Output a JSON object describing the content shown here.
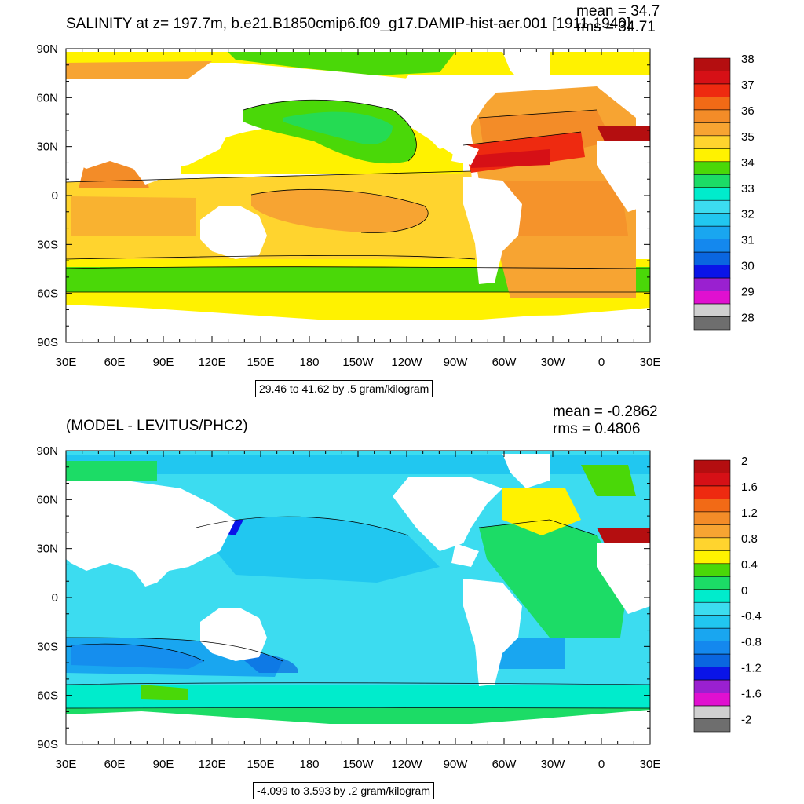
{
  "colors": {
    "fill_values": [
      "#6e6e6e",
      "#d0d0d0",
      "#e010d0",
      "#9a20d0",
      "#0a14e8",
      "#0a66e0",
      "#1488ee",
      "#19a6f0",
      "#21c7f0",
      "#3cdcf0",
      "#00eccc",
      "#1cdc66",
      "#4ad808",
      "#fff200",
      "#ffd42e",
      "#f7a432",
      "#f38c28",
      "#f26a16",
      "#ee2a10",
      "#d61016",
      "#b40e10"
    ]
  },
  "top": {
    "title": "SALINITY at z= 197.7m, b.e21.B1850cmip6.f09_g17.DAMIP-hist-aer.001 [1911-1940]",
    "mean": "mean = 34.7",
    "rms": "rms = 34.71",
    "range": "29.46 to 41.62 by .5 gram/kilogram",
    "colorbar_labels": [
      "38",
      "37",
      "36",
      "35",
      "34",
      "33",
      "32",
      "31",
      "30",
      "29",
      "28"
    ],
    "colorbar_colors": [
      "#b40e10",
      "#d61016",
      "#ee2a10",
      "#f26a16",
      "#f38c28",
      "#f7a432",
      "#ffd42e",
      "#fff200",
      "#4ad808",
      "#1cdc66",
      "#00eccc",
      "#3cdcf0",
      "#21c7f0",
      "#19a6f0",
      "#1488ee",
      "#0a66e0",
      "#0a14e8",
      "#9a20d0",
      "#e010d0",
      "#d0d0d0",
      "#6e6e6e"
    ]
  },
  "bottom": {
    "title": "(MODEL - LEVITUS/PHC2)",
    "mean": "mean = -0.2862",
    "rms": "rms = 0.4806",
    "range": "-4.099 to 3.593 by .2 gram/kilogram",
    "colorbar_labels": [
      "2",
      "1.6",
      "1.2",
      "0.8",
      "0.4",
      "0",
      "-0.4",
      "-0.8",
      "-1.2",
      "-1.6",
      "-2"
    ],
    "colorbar_colors": [
      "#b40e10",
      "#d61016",
      "#ee2a10",
      "#f26a16",
      "#f38c28",
      "#f7a432",
      "#ffd42e",
      "#fff200",
      "#4ad808",
      "#1cdc66",
      "#00eccc",
      "#3cdcf0",
      "#21c7f0",
      "#19a6f0",
      "#1488ee",
      "#0a66e0",
      "#0a14e8",
      "#9a20d0",
      "#e010d0",
      "#d0d0d0",
      "#6e6e6e"
    ]
  },
  "axes": {
    "lon_labels": [
      "30E",
      "60E",
      "90E",
      "120E",
      "150E",
      "180",
      "150W",
      "120W",
      "90W",
      "60W",
      "30W",
      "0",
      "30E"
    ],
    "lat_labels": [
      "90N",
      "60N",
      "30N",
      "0",
      "30S",
      "60S",
      "90S"
    ]
  }
}
